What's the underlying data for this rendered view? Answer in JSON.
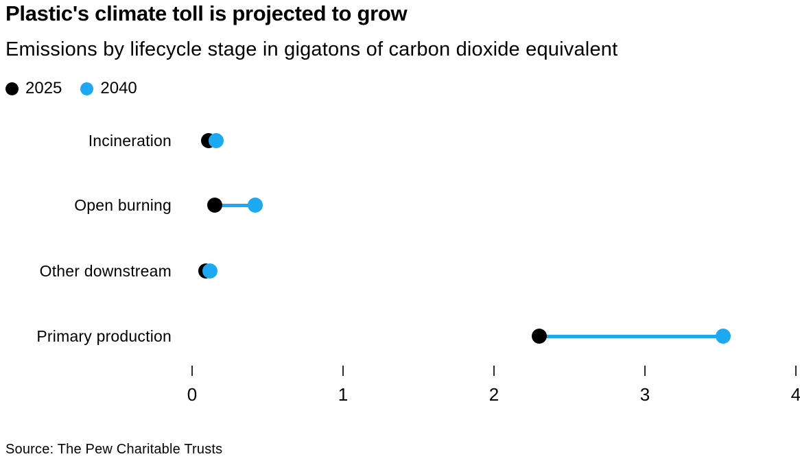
{
  "header": {
    "title": "Plastic's climate toll is projected to grow",
    "subtitle": "Emissions by lifecycle stage in gigatons of carbon dioxide equivalent"
  },
  "source": "Source: The Pew Charitable Trusts",
  "colors": {
    "series_2025": "#000000",
    "series_2040": "#1da9f1",
    "tick": "#2b2b2b",
    "text": "#000000",
    "background": "#ffffff"
  },
  "chart_data": {
    "type": "dumbbell",
    "title": "Plastic's climate toll is projected to grow",
    "subtitle": "Emissions by lifecycle stage in gigatons of carbon dioxide equivalent",
    "unit": "gigatons of carbon dioxide equivalent",
    "categories": [
      "Incineration",
      "Open burning",
      "Other downstream",
      "Primary production"
    ],
    "series": [
      {
        "name": "2025",
        "color": "#000000",
        "values": [
          0.11,
          0.15,
          0.09,
          2.3
        ]
      },
      {
        "name": "2040",
        "color": "#1da9f1",
        "values": [
          0.16,
          0.42,
          0.12,
          3.52
        ]
      }
    ],
    "xlabel": "",
    "ylabel": "",
    "xlim": [
      0,
      4
    ],
    "x_ticks": [
      0,
      1,
      2,
      3,
      4
    ],
    "grid": false,
    "legend_position": "top-left"
  }
}
